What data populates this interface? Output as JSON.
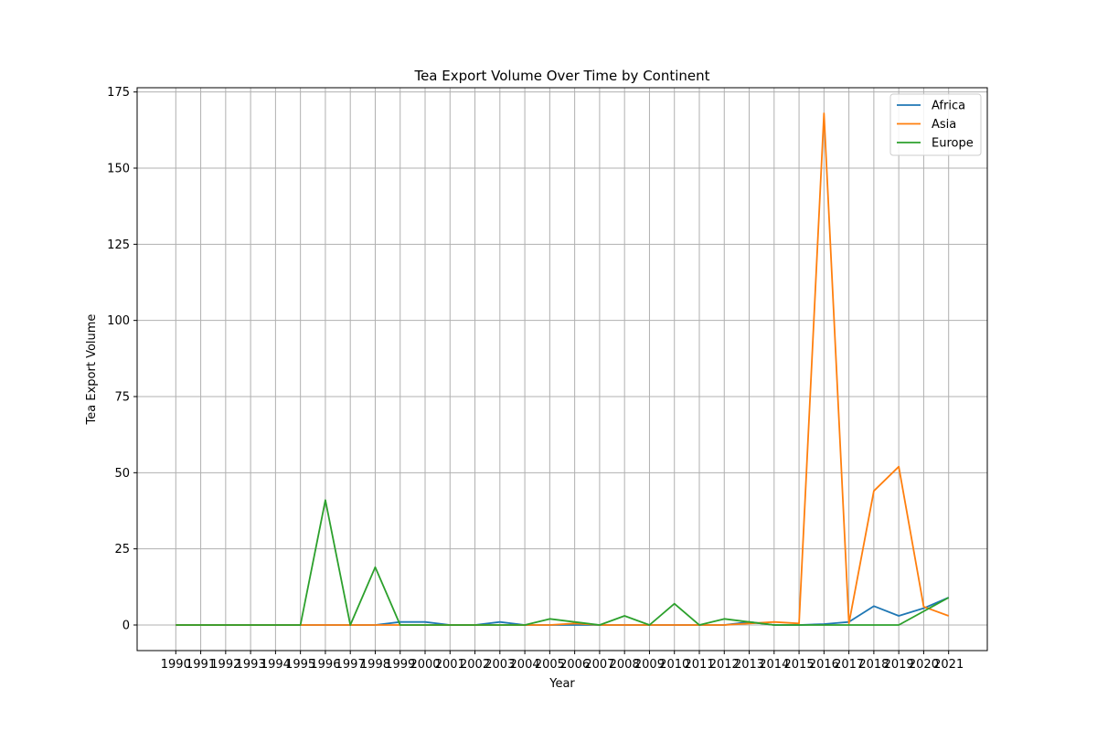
{
  "chart_data": {
    "type": "line",
    "title": "Tea Export Volume Over Time by Continent",
    "xlabel": "Year",
    "ylabel": "Tea Export Volume",
    "x": [
      "1990",
      "1991",
      "1992",
      "1993",
      "1994",
      "1995",
      "1996",
      "1997",
      "1998",
      "1999",
      "2000",
      "2001",
      "2002",
      "2003",
      "2004",
      "2005",
      "2006",
      "2007",
      "2008",
      "2009",
      "2010",
      "2011",
      "2012",
      "2013",
      "2014",
      "2015",
      "2016",
      "2017",
      "2018",
      "2019",
      "2020",
      "2021"
    ],
    "ylim": [
      -8.4,
      176.4
    ],
    "yticks": [
      0,
      25,
      50,
      75,
      100,
      125,
      150,
      175
    ],
    "grid": true,
    "legend_position": "top-right",
    "series": [
      {
        "name": "Africa",
        "color": "#1f77b4",
        "values": [
          0,
          0,
          0,
          0,
          0,
          0,
          0,
          0,
          0,
          1,
          1,
          0,
          0,
          1,
          0,
          0,
          0,
          0,
          0,
          0,
          0,
          0,
          0,
          1,
          0,
          0,
          0.3,
          1,
          6.2,
          3,
          5.5,
          9
        ]
      },
      {
        "name": "Asia",
        "color": "#ff7f0e",
        "values": [
          0,
          0,
          0,
          0,
          0,
          0,
          0,
          0,
          0,
          0,
          0,
          0,
          0,
          0,
          0,
          0,
          0.5,
          0,
          0,
          0,
          0,
          0,
          0,
          0.5,
          1,
          0.5,
          168,
          0.5,
          44,
          52,
          6,
          3
        ]
      },
      {
        "name": "Europe",
        "color": "#2ca02c",
        "values": [
          0,
          0,
          0,
          0,
          0,
          0,
          41,
          0,
          19,
          0,
          0,
          0,
          0,
          0,
          0,
          2,
          1,
          0,
          3,
          0,
          7,
          0,
          2,
          1,
          0,
          0,
          0,
          0,
          0,
          0,
          4.5,
          9
        ]
      }
    ]
  }
}
